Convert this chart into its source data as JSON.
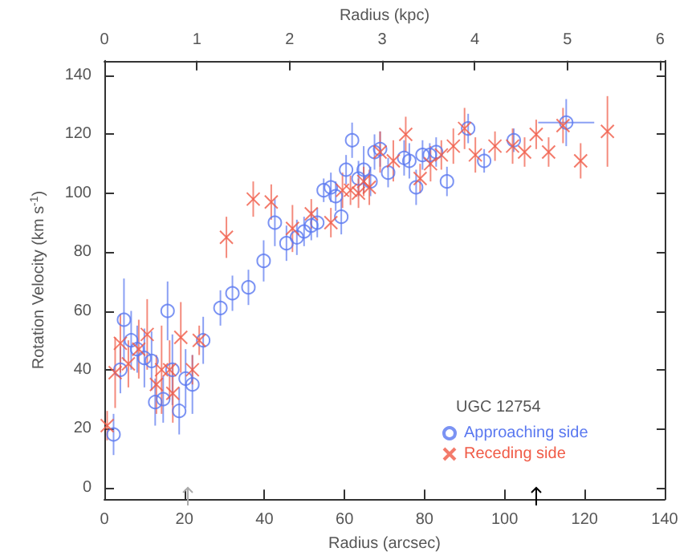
{
  "chart_data": {
    "type": "scatter",
    "xlabel": "Radius (arcsec)",
    "ylabel": "Rotation Velocity (km s$^{-1}$)",
    "x2label": "Radius (kpc)",
    "legend_title": "UGC 12754",
    "legend": "bottom right",
    "grid": false,
    "xlim": [
      0,
      140
    ],
    "xticks": [
      0,
      20,
      40,
      60,
      80,
      100,
      120,
      140
    ],
    "ylim": [
      -4,
      145
    ],
    "yticks": [
      0,
      20,
      40,
      60,
      80,
      100,
      120,
      140
    ],
    "x2lim": [
      0,
      6.05
    ],
    "x2ticks": [
      0,
      1,
      2,
      3,
      4,
      5,
      6
    ],
    "series": [
      {
        "name": "Approaching side",
        "color": "#5a78f0",
        "marker": "circle",
        "x": [
          2.3,
          4,
          4.9,
          6.7,
          8.2,
          10,
          11.8,
          12.7,
          14.7,
          15.8,
          17,
          18.7,
          20.3,
          22,
          24.7,
          29,
          32,
          36,
          39.8,
          42.6,
          45.5,
          48.1,
          49.9,
          51.7,
          53.2,
          54.8,
          56.6,
          57.8,
          59.2,
          60.4,
          61.9,
          63.5,
          64.8,
          66.5,
          67.5,
          68.9,
          70.9,
          74.9,
          76.2,
          77.9,
          79.5,
          81.3,
          82.9,
          85.6,
          90.9,
          94.9,
          102.3,
          115.4
        ],
        "values": [
          18,
          40,
          57,
          50,
          47,
          44,
          43,
          29,
          30,
          60,
          40,
          26,
          37,
          35,
          50,
          61,
          66,
          68,
          77,
          90,
          83,
          85,
          87,
          89,
          90,
          101,
          102,
          99,
          92,
          108,
          118,
          105,
          108,
          104,
          114,
          115,
          107,
          112,
          111,
          102,
          113,
          113,
          114,
          104,
          122,
          111,
          118,
          124
        ],
        "errors": [
          7,
          8,
          14,
          10,
          8,
          10,
          10,
          8,
          8,
          10,
          12,
          8,
          10,
          10,
          8,
          6,
          6,
          6,
          7,
          8,
          6,
          6,
          5,
          5,
          5,
          4,
          5,
          5,
          6,
          5,
          6,
          6,
          8,
          5,
          6,
          6,
          5,
          6,
          6,
          6,
          5,
          4,
          5,
          5,
          5,
          4,
          4,
          8
        ],
        "xerrors": [
          null,
          null,
          null,
          null,
          null,
          null,
          null,
          null,
          null,
          null,
          null,
          null,
          null,
          null,
          null,
          null,
          null,
          null,
          null,
          null,
          null,
          null,
          null,
          null,
          null,
          null,
          null,
          null,
          null,
          null,
          null,
          null,
          null,
          null,
          null,
          null,
          null,
          null,
          null,
          null,
          null,
          null,
          null,
          null,
          null,
          null,
          null,
          7
        ]
      },
      {
        "name": "Receding side",
        "color": "#f05a46",
        "marker": "cross",
        "x": [
          0.7,
          2.7,
          4,
          6,
          8.6,
          10.7,
          13,
          14.3,
          16.3,
          17.1,
          19.1,
          22,
          23.7,
          30.5,
          37.2,
          41.7,
          47,
          51.7,
          56.6,
          59.5,
          61.5,
          63.5,
          64.8,
          66.2,
          68.9,
          72.2,
          75.3,
          78.9,
          81.5,
          84.2,
          87.2,
          90,
          92.7,
          97.6,
          102,
          105,
          107.9,
          111,
          114.6,
          119,
          125.7
        ],
        "values": [
          21,
          39,
          49,
          42,
          47,
          52,
          35,
          40,
          40,
          32,
          51,
          40,
          50,
          85,
          98,
          97,
          88,
          93,
          90,
          101,
          101,
          100,
          104,
          102,
          114,
          111,
          120,
          105,
          110,
          113,
          116,
          122,
          113,
          116,
          116,
          114,
          120,
          114,
          123,
          111,
          121
        ],
        "errors": [
          5,
          12,
          10,
          8,
          10,
          12,
          10,
          15,
          10,
          10,
          12,
          5,
          5,
          7,
          6,
          6,
          8,
          5,
          5,
          6,
          5,
          5,
          5,
          6,
          7,
          7,
          6,
          5,
          6,
          5,
          6,
          7,
          6,
          5,
          6,
          5,
          5,
          5,
          6,
          6,
          12
        ]
      }
    ]
  }
}
